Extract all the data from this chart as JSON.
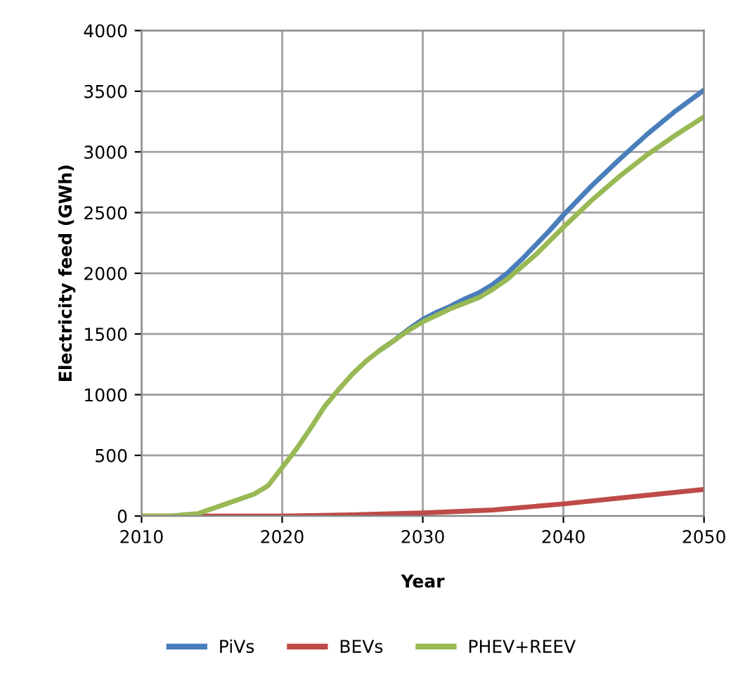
{
  "chart_data": {
    "type": "line",
    "xlabel": "Year",
    "ylabel": "Electricity feed (GWh)",
    "xlim": [
      2010,
      2050
    ],
    "xticks": [
      2010,
      2020,
      2030,
      2040,
      2050
    ],
    "ylim": [
      0,
      4000
    ],
    "yticks": [
      0,
      500,
      1000,
      1500,
      2000,
      2500,
      3000,
      3500,
      4000
    ],
    "grid": true,
    "legend": "bottom",
    "line_style": "solid",
    "marker": "none",
    "series": [
      {
        "name": "PiVs",
        "color": "#4a7ebb",
        "x": [
          2027,
          2028,
          2029,
          2030,
          2031,
          2032,
          2033,
          2034,
          2035,
          2036,
          2037,
          2038,
          2039,
          2040,
          2042,
          2044,
          2046,
          2048,
          2050
        ],
        "values": [
          1370,
          1450,
          1540,
          1620,
          1680,
          1730,
          1790,
          1840,
          1910,
          2000,
          2110,
          2230,
          2350,
          2480,
          2720,
          2940,
          3150,
          3340,
          3510
        ]
      },
      {
        "name": "BEVs",
        "color": "#be4b48",
        "x": [
          2010,
          2015,
          2020,
          2025,
          2030,
          2035,
          2040,
          2045,
          2050
        ],
        "values": [
          0,
          0,
          0,
          10,
          25,
          50,
          100,
          160,
          220
        ]
      },
      {
        "name": "PHEV+REEV",
        "color": "#98b954",
        "x": [
          2010,
          2012,
          2014,
          2016,
          2018,
          2019,
          2020,
          2021,
          2022,
          2023,
          2024,
          2025,
          2026,
          2027,
          2028,
          2029,
          2030,
          2032,
          2034,
          2035,
          2036,
          2038,
          2040,
          2042,
          2044,
          2046,
          2048,
          2050
        ],
        "values": [
          0,
          0,
          20,
          100,
          180,
          250,
          400,
          550,
          720,
          900,
          1040,
          1170,
          1280,
          1370,
          1450,
          1530,
          1600,
          1710,
          1800,
          1870,
          1950,
          2150,
          2380,
          2600,
          2800,
          2980,
          3140,
          3290
        ]
      }
    ]
  }
}
